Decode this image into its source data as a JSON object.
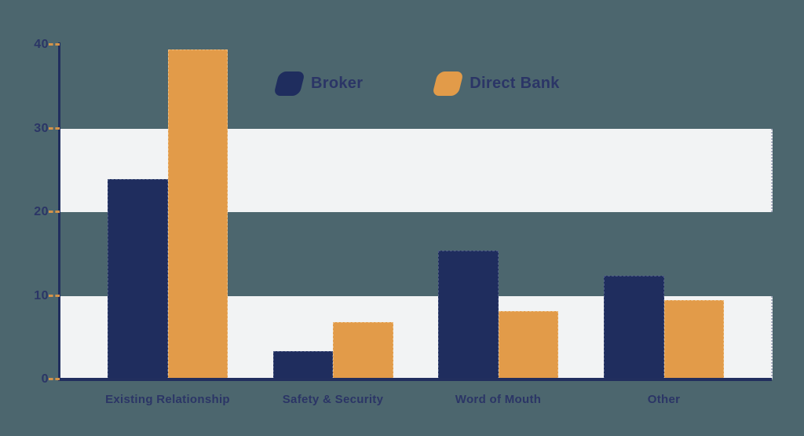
{
  "colors": {
    "background": "#4c666e",
    "navy": "#1f2d5e",
    "orange": "#e29b49",
    "band": "#f2f3f4",
    "label": "#2b3566",
    "axis": "#212e5e",
    "tick": "#d4934a"
  },
  "legend": {
    "items": [
      {
        "label": "Broker",
        "swatch": "navy-parallelogram-swatch"
      },
      {
        "label": "Direct Bank",
        "swatch": "orange-parallelogram-swatch"
      }
    ]
  },
  "chart_data": {
    "type": "bar",
    "title": "",
    "xlabel": "",
    "ylabel": "",
    "categories": [
      "Existing Relationship",
      "Safety & Security",
      "Word of Mouth",
      "Other"
    ],
    "series": [
      {
        "name": "Broker",
        "color": "#1f2d5e",
        "values": [
          23.9,
          3.4,
          15.4,
          12.4
        ]
      },
      {
        "name": "Direct Bank",
        "color": "#e29b49",
        "values": [
          39.4,
          6.9,
          8.2,
          9.5
        ]
      }
    ],
    "ylim": [
      0,
      40
    ],
    "yticks": [
      0,
      10,
      20,
      30,
      40
    ],
    "band_ranges": [
      [
        0,
        10
      ],
      [
        20,
        30
      ]
    ],
    "grid": "banded-horizontal",
    "legend_position": "top-center"
  }
}
